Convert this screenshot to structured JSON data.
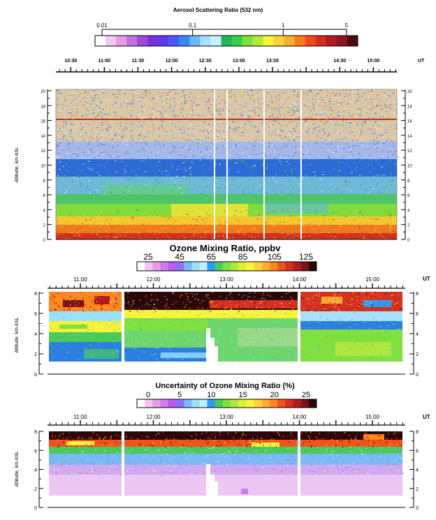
{
  "chart_data": [
    {
      "type": "heatmap",
      "title": "Aerosol Scattering Ratio (532 nm)",
      "colorbar": {
        "scale": "log",
        "ticks": [
          "0.01",
          "0.1",
          "1",
          "5"
        ],
        "range": [
          0.01,
          5
        ],
        "colors": [
          "#ffffff",
          "#f4c8f4",
          "#e69be6",
          "#c76fe0",
          "#a146e0",
          "#7a2fe0",
          "#5f3cf0",
          "#4a5af8",
          "#3a86ff",
          "#6ab8ff",
          "#a8e0ff",
          "#c8f0ff",
          "#1fb85c",
          "#35d14a",
          "#7fe040",
          "#b6ea3a",
          "#f7f23a",
          "#ffd23a",
          "#ffad2c",
          "#ff7a1c",
          "#f04a18",
          "#d62a1e",
          "#b41a22",
          "#8c1420",
          "#4a0a10"
        ]
      },
      "time_axis": {
        "label": "UT",
        "ticks": [
          "10:30",
          "11:00",
          "11:30",
          "12:00",
          "12:30",
          "13:00",
          "13:30",
          "14:30",
          "15:00"
        ],
        "tick_hours": [
          10.5,
          11,
          11.5,
          12,
          12.5,
          13,
          13.5,
          14.5,
          15
        ],
        "range_hours": [
          10.28,
          15.35
        ]
      },
      "y_axis": {
        "label": "Altitude, km ASL",
        "ticks": [
          0,
          2,
          4,
          6,
          8,
          10,
          12,
          14,
          16,
          18,
          20
        ],
        "range": [
          0,
          20
        ]
      }
    },
    {
      "type": "heatmap",
      "title": "Ozone Mixing Ratio, ppbv",
      "colorbar": {
        "ticks": [
          "25",
          "45",
          "65",
          "85",
          "105",
          "125"
        ],
        "tick_values": [
          25,
          45,
          65,
          85,
          105,
          125
        ],
        "range": [
          25,
          125
        ],
        "colors": [
          "#ffffff",
          "#f2c6f2",
          "#e69be6",
          "#d07cec",
          "#b85cf2",
          "#8f6ef8",
          "#7ab8f8",
          "#9ce0ff",
          "#c0eeff",
          "#2a9cf2",
          "#4aca5a",
          "#7fe040",
          "#aee83c",
          "#dcef3a",
          "#fff23a",
          "#ffd23a",
          "#ffad2c",
          "#ff861e",
          "#f05418",
          "#d6301e",
          "#b41a22",
          "#7a1218",
          "#2a0608"
        ]
      },
      "time_axis": {
        "label": "UT",
        "ticks": [
          "11:00",
          "12:00",
          "13:00",
          "14:00",
          "15:00"
        ],
        "tick_hours": [
          11,
          12,
          13,
          14,
          15
        ],
        "range_hours": [
          10.55,
          15.45
        ]
      },
      "y_axis": {
        "label": "Altitude, km ASL",
        "ticks": [
          0,
          2,
          4,
          6,
          8
        ],
        "range": [
          0,
          8
        ]
      }
    },
    {
      "type": "heatmap",
      "title": "Uncertainty of Ozone Mixing Ratio (%)",
      "colorbar": {
        "ticks": [
          "0",
          "5",
          "10",
          "15",
          "20",
          "25"
        ],
        "tick_values": [
          0,
          5,
          10,
          15,
          20,
          25
        ],
        "range": [
          0,
          25
        ],
        "colors": [
          "#ffffff",
          "#f2c6f2",
          "#e69be6",
          "#d07cec",
          "#b85cf2",
          "#8f6ef8",
          "#7ab8f8",
          "#9ce0ff",
          "#c0eeff",
          "#2a9cf2",
          "#4aca5a",
          "#7fe040",
          "#aee83c",
          "#dcef3a",
          "#fff23a",
          "#ffd23a",
          "#ffad2c",
          "#ff861e",
          "#f05418",
          "#d6301e",
          "#b41a22",
          "#7a1218",
          "#2a0608"
        ]
      },
      "time_axis": {
        "label": "UT",
        "ticks": [
          "11:00",
          "12:00",
          "13:00",
          "14:00",
          "15:00"
        ],
        "tick_hours": [
          11,
          12,
          13,
          14,
          15
        ],
        "range_hours": [
          10.55,
          15.45
        ]
      },
      "y_axis": {
        "label": "Altitude, km ASL",
        "ticks": [
          0,
          2,
          4,
          6,
          8
        ],
        "range": [
          0,
          8
        ]
      }
    }
  ]
}
